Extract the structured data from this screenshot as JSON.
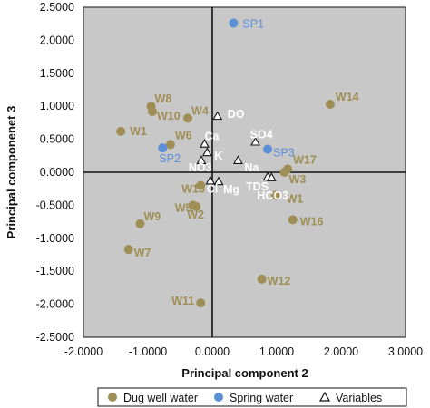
{
  "chart_data": {
    "type": "scatter",
    "xlabel": "Principal component 2",
    "ylabel": "Principal componenet 3",
    "xlim": [
      -2,
      3
    ],
    "ylim": [
      -2.5,
      2.5
    ],
    "xticks": [
      "-2.0000",
      "-1.0000",
      "0.0000",
      "1.0000",
      "2.0000",
      "3.0000"
    ],
    "yticks": [
      "2.5000",
      "2.0000",
      "1.5000",
      "1.0000",
      "0.5000",
      "0.0000",
      "-0.5000",
      "-1.0000",
      "-1.5000",
      "-2.0000",
      "-2.5000"
    ],
    "grid": false,
    "legend_position": "bottom",
    "series": [
      {
        "name": "Dug well water",
        "marker": "circle",
        "color": "#9f8e56",
        "label_color": "#9f8e56",
        "points": [
          {
            "label": "W1",
            "x": -1.42,
            "y": 0.62
          },
          {
            "label": "W8",
            "x": -0.95,
            "y": 1.0
          },
          {
            "label": "W10",
            "x": -0.93,
            "y": 0.92
          },
          {
            "label": "W4",
            "x": -0.38,
            "y": 0.82
          },
          {
            "label": "W6",
            "x": -0.65,
            "y": 0.42
          },
          {
            "label": "W14",
            "x": 1.83,
            "y": 1.03
          },
          {
            "label": "W17",
            "x": 1.17,
            "y": 0.05
          },
          {
            "label": "W3",
            "x": 1.12,
            "y": 0.0
          },
          {
            "label": "W1",
            "x": 0.98,
            "y": -0.35
          },
          {
            "label": "W15",
            "x": -0.18,
            "y": -0.2
          },
          {
            "label": "W5",
            "x": -0.3,
            "y": -0.5
          },
          {
            "label": "W2",
            "x": -0.25,
            "y": -0.52
          },
          {
            "label": "W9",
            "x": -1.12,
            "y": -0.78
          },
          {
            "label": "W16",
            "x": 1.25,
            "y": -0.72
          },
          {
            "label": "W7",
            "x": -1.3,
            "y": -1.17
          },
          {
            "label": "W12",
            "x": 0.77,
            "y": -1.62
          },
          {
            "label": "W11",
            "x": -0.18,
            "y": -1.98
          }
        ]
      },
      {
        "name": "Spring water",
        "marker": "circle",
        "color": "#5b8fd6",
        "label_color": "#5b8fd6",
        "points": [
          {
            "label": "SP1",
            "x": 0.33,
            "y": 2.26
          },
          {
            "label": "SP2",
            "x": -0.77,
            "y": 0.37
          },
          {
            "label": "SP3",
            "x": 0.86,
            "y": 0.35
          }
        ]
      },
      {
        "name": "Variables",
        "marker": "triangle",
        "color": "#111111",
        "label_color": "#ffffff",
        "points": [
          {
            "label": "DO",
            "x": 0.08,
            "y": 0.85
          },
          {
            "label": "Ca",
            "x": -0.12,
            "y": 0.43
          },
          {
            "label": "K",
            "x": -0.08,
            "y": 0.3
          },
          {
            "label": "SO4",
            "x": 0.67,
            "y": 0.46
          },
          {
            "label": "NO3",
            "x": -0.17,
            "y": 0.18
          },
          {
            "label": "Na",
            "x": 0.4,
            "y": 0.18
          },
          {
            "label": "TDS",
            "x": 0.86,
            "y": -0.07
          },
          {
            "label": "HCO3",
            "x": 0.92,
            "y": -0.08
          },
          {
            "label": "Cl",
            "x": -0.03,
            "y": -0.13
          },
          {
            "label": "Mg",
            "x": 0.1,
            "y": -0.14
          }
        ]
      }
    ]
  }
}
